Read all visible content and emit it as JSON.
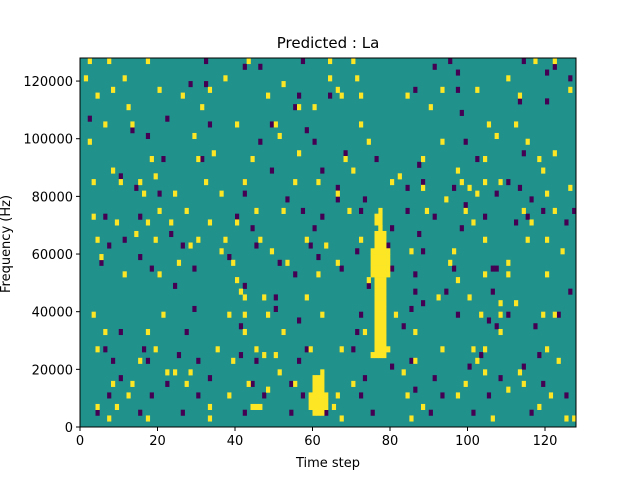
{
  "chart_data": {
    "type": "heatmap",
    "title": "Predicted : La",
    "xlabel": "Time step",
    "ylabel": "Frequency (Hz)",
    "xlim": [
      0,
      128
    ],
    "ylim": [
      0,
      128000
    ],
    "xticks": [
      0,
      20,
      40,
      60,
      80,
      100,
      120
    ],
    "yticks": [
      0,
      20000,
      40000,
      60000,
      80000,
      100000,
      120000
    ],
    "xtick_labels": [
      "0",
      "20",
      "40",
      "60",
      "80",
      "100",
      "120"
    ],
    "ytick_labels": [
      "0",
      "20000",
      "40000",
      "60000",
      "80000",
      "100000",
      "120000"
    ],
    "n_time": 128,
    "n_freq_bins": 64,
    "freq_bin_hz": 2000,
    "colormap": "viridis",
    "value_levels": [
      -1,
      0,
      1
    ],
    "colors": {
      "low": "#440154",
      "mid": "#21918c",
      "high": "#fde725"
    },
    "background_value": 0,
    "high_cells": [
      [
        2,
        63
      ],
      [
        7,
        63
      ],
      [
        17,
        63
      ],
      [
        43,
        63
      ],
      [
        64,
        63
      ],
      [
        70,
        63
      ],
      [
        122,
        63
      ],
      [
        117,
        63
      ],
      [
        1,
        60
      ],
      [
        11,
        60
      ],
      [
        37,
        60
      ],
      [
        64,
        60
      ],
      [
        71,
        60
      ],
      [
        110,
        60
      ],
      [
        4,
        57
      ],
      [
        26,
        57
      ],
      [
        48,
        57
      ],
      [
        67,
        57
      ],
      [
        72,
        57
      ],
      [
        84,
        57
      ],
      [
        113,
        57
      ],
      [
        12,
        55
      ],
      [
        31,
        55
      ],
      [
        56,
        55
      ],
      [
        60,
        55
      ],
      [
        90,
        55
      ],
      [
        6,
        52
      ],
      [
        13,
        52
      ],
      [
        40,
        52
      ],
      [
        50,
        52
      ],
      [
        72,
        52
      ],
      [
        105,
        52
      ],
      [
        112,
        52
      ],
      [
        34,
        47
      ],
      [
        122,
        47
      ],
      [
        8,
        44
      ],
      [
        10,
        42
      ],
      [
        19,
        43
      ],
      [
        70,
        44
      ],
      [
        82,
        43
      ],
      [
        97,
        44
      ],
      [
        119,
        44
      ],
      [
        3,
        42
      ],
      [
        15,
        42
      ],
      [
        32,
        42
      ],
      [
        42,
        42
      ],
      [
        55,
        42
      ],
      [
        61,
        42
      ],
      [
        80,
        42
      ],
      [
        88,
        41
      ],
      [
        98,
        42
      ],
      [
        100,
        41
      ],
      [
        104,
        42
      ],
      [
        108,
        42
      ],
      [
        126,
        41
      ],
      [
        16,
        40
      ],
      [
        24,
        40
      ],
      [
        36,
        40
      ],
      [
        66,
        40
      ],
      [
        94,
        39
      ],
      [
        102,
        40
      ],
      [
        120,
        40
      ],
      [
        20,
        37
      ],
      [
        27,
        37
      ],
      [
        45,
        37
      ],
      [
        52,
        37
      ],
      [
        69,
        37
      ],
      [
        76,
        36
      ],
      [
        89,
        37
      ],
      [
        99,
        37
      ],
      [
        114,
        37
      ],
      [
        122,
        37
      ],
      [
        9,
        35
      ],
      [
        17,
        35
      ],
      [
        23,
        35
      ],
      [
        33,
        35
      ],
      [
        40,
        35
      ],
      [
        76,
        35
      ],
      [
        77,
        34
      ],
      [
        101,
        35
      ],
      [
        116,
        35
      ],
      [
        4,
        32
      ],
      [
        19,
        32
      ],
      [
        30,
        32
      ],
      [
        37,
        32
      ],
      [
        46,
        32
      ],
      [
        58,
        32
      ],
      [
        72,
        32
      ],
      [
        104,
        32
      ],
      [
        115,
        32
      ],
      [
        120,
        32
      ],
      [
        5,
        29
      ],
      [
        25,
        28
      ],
      [
        39,
        28
      ],
      [
        53,
        28
      ],
      [
        66,
        28
      ],
      [
        95,
        28
      ],
      [
        110,
        28
      ],
      [
        11,
        26
      ],
      [
        20,
        26
      ],
      [
        40,
        25
      ],
      [
        61,
        26
      ],
      [
        74,
        25
      ],
      [
        97,
        25
      ],
      [
        104,
        26
      ],
      [
        110,
        26
      ],
      [
        120,
        26
      ],
      [
        41,
        23
      ],
      [
        42,
        22
      ],
      [
        47,
        22
      ],
      [
        58,
        22
      ],
      [
        92,
        22
      ],
      [
        100,
        22
      ],
      [
        108,
        21
      ],
      [
        112,
        21
      ],
      [
        3,
        19
      ],
      [
        21,
        19
      ],
      [
        38,
        19
      ],
      [
        42,
        19
      ],
      [
        48,
        19
      ],
      [
        62,
        19
      ],
      [
        81,
        19
      ],
      [
        103,
        19
      ],
      [
        108,
        19
      ],
      [
        119,
        19
      ],
      [
        122,
        19
      ],
      [
        6,
        16
      ],
      [
        17,
        16
      ],
      [
        42,
        16
      ],
      [
        52,
        16
      ],
      [
        73,
        16
      ],
      [
        86,
        16
      ],
      [
        108,
        16
      ],
      [
        4,
        13
      ],
      [
        19,
        13
      ],
      [
        35,
        13
      ],
      [
        45,
        13
      ],
      [
        59,
        13
      ],
      [
        79,
        13
      ],
      [
        93,
        13
      ],
      [
        101,
        13
      ],
      [
        104,
        13
      ],
      [
        120,
        13
      ],
      [
        22,
        9
      ],
      [
        24,
        9
      ],
      [
        28,
        9
      ],
      [
        51,
        9
      ],
      [
        62,
        9
      ],
      [
        83,
        9
      ],
      [
        104,
        9
      ],
      [
        113,
        9
      ],
      [
        8,
        7
      ],
      [
        13,
        7
      ],
      [
        27,
        7
      ],
      [
        43,
        7
      ],
      [
        55,
        7
      ],
      [
        70,
        7
      ],
      [
        99,
        7
      ],
      [
        114,
        7
      ],
      [
        38,
        5
      ],
      [
        48,
        6
      ],
      [
        66,
        5
      ],
      [
        84,
        5
      ],
      [
        97,
        5
      ],
      [
        121,
        5
      ],
      [
        110,
        6
      ],
      [
        4,
        3
      ],
      [
        9,
        3
      ],
      [
        33,
        3
      ],
      [
        46,
        3
      ],
      [
        65,
        3
      ],
      [
        88,
        3
      ],
      [
        118,
        3
      ],
      [
        7,
        1
      ],
      [
        17,
        1
      ],
      [
        33,
        1
      ],
      [
        67,
        1
      ],
      [
        85,
        1
      ],
      [
        106,
        1
      ],
      [
        125,
        1
      ],
      [
        127,
        1
      ],
      [
        12,
        5
      ],
      [
        15,
        11
      ],
      [
        39,
        11
      ],
      [
        47,
        12
      ],
      [
        50,
        12
      ],
      [
        67,
        13
      ],
      [
        75,
        12
      ],
      [
        86,
        11
      ],
      [
        102,
        11
      ],
      [
        123,
        11
      ],
      [
        3,
        36
      ],
      [
        14,
        33
      ],
      [
        28,
        31
      ],
      [
        36,
        30
      ],
      [
        49,
        30
      ],
      [
        63,
        31
      ],
      [
        85,
        30
      ],
      [
        96,
        30
      ],
      [
        124,
        30
      ],
      [
        18,
        46
      ],
      [
        30,
        46
      ],
      [
        44,
        46
      ],
      [
        56,
        47
      ],
      [
        68,
        46
      ],
      [
        88,
        46
      ],
      [
        104,
        46
      ],
      [
        118,
        46
      ],
      [
        2,
        49
      ],
      [
        29,
        50
      ],
      [
        51,
        50
      ],
      [
        74,
        49
      ],
      [
        93,
        49
      ],
      [
        107,
        50
      ],
      [
        115,
        49
      ],
      [
        8,
        58
      ],
      [
        20,
        58
      ],
      [
        33,
        58
      ],
      [
        52,
        59
      ],
      [
        66,
        58
      ],
      [
        93,
        58
      ],
      [
        102,
        58
      ],
      [
        126,
        58
      ]
    ],
    "low_cells": [
      [
        32,
        63
      ],
      [
        57,
        63
      ],
      [
        95,
        63
      ],
      [
        114,
        63
      ],
      [
        122,
        62
      ],
      [
        42,
        62
      ],
      [
        46,
        62
      ],
      [
        91,
        62
      ],
      [
        97,
        61
      ],
      [
        120,
        61
      ],
      [
        126,
        60
      ],
      [
        28,
        59
      ],
      [
        32,
        59
      ],
      [
        56,
        57
      ],
      [
        64,
        57
      ],
      [
        86,
        58
      ],
      [
        97,
        58
      ],
      [
        55,
        55
      ],
      [
        120,
        56
      ],
      [
        98,
        54
      ],
      [
        113,
        56
      ],
      [
        2,
        53
      ],
      [
        13,
        51
      ],
      [
        22,
        53
      ],
      [
        33,
        52
      ],
      [
        49,
        52
      ],
      [
        58,
        51
      ],
      [
        17,
        50
      ],
      [
        46,
        49
      ],
      [
        60,
        49
      ],
      [
        68,
        47
      ],
      [
        99,
        49
      ],
      [
        114,
        47
      ],
      [
        21,
        46
      ],
      [
        31,
        46
      ],
      [
        49,
        44
      ],
      [
        62,
        44
      ],
      [
        76,
        46
      ],
      [
        87,
        45
      ],
      [
        102,
        46
      ],
      [
        10,
        43
      ],
      [
        14,
        41
      ],
      [
        42,
        42
      ],
      [
        66,
        41
      ],
      [
        84,
        41
      ],
      [
        88,
        42
      ],
      [
        96,
        41
      ],
      [
        110,
        42
      ],
      [
        113,
        41
      ],
      [
        20,
        40
      ],
      [
        42,
        40
      ],
      [
        53,
        39
      ],
      [
        66,
        39
      ],
      [
        73,
        39
      ],
      [
        107,
        40
      ],
      [
        116,
        39
      ],
      [
        6,
        36
      ],
      [
        15,
        36
      ],
      [
        40,
        36
      ],
      [
        57,
        37
      ],
      [
        62,
        36
      ],
      [
        72,
        37
      ],
      [
        84,
        37
      ],
      [
        91,
        36
      ],
      [
        99,
        38
      ],
      [
        104,
        36
      ],
      [
        115,
        36
      ],
      [
        119,
        37
      ],
      [
        127,
        37
      ],
      [
        11,
        32
      ],
      [
        23,
        33
      ],
      [
        44,
        34
      ],
      [
        60,
        34
      ],
      [
        80,
        34
      ],
      [
        87,
        33
      ],
      [
        98,
        34
      ],
      [
        112,
        35
      ],
      [
        125,
        35
      ],
      [
        7,
        31
      ],
      [
        26,
        31
      ],
      [
        45,
        31
      ],
      [
        59,
        31
      ],
      [
        71,
        30
      ],
      [
        79,
        31
      ],
      [
        88,
        30
      ],
      [
        5,
        28
      ],
      [
        15,
        29
      ],
      [
        29,
        27
      ],
      [
        38,
        29
      ],
      [
        51,
        28
      ],
      [
        61,
        29
      ],
      [
        80,
        27
      ],
      [
        106,
        27
      ],
      [
        18,
        27
      ],
      [
        55,
        26
      ],
      [
        67,
        27
      ],
      [
        86,
        26
      ],
      [
        96,
        27
      ],
      [
        107,
        27
      ],
      [
        24,
        24
      ],
      [
        42,
        24
      ],
      [
        50,
        22
      ],
      [
        74,
        24
      ],
      [
        86,
        23
      ],
      [
        94,
        23
      ],
      [
        106,
        23
      ],
      [
        126,
        23
      ],
      [
        29,
        20
      ],
      [
        50,
        20
      ],
      [
        56,
        18
      ],
      [
        72,
        19
      ],
      [
        85,
        20
      ],
      [
        88,
        21
      ],
      [
        97,
        19
      ],
      [
        105,
        18
      ],
      [
        110,
        19
      ],
      [
        123,
        19
      ],
      [
        10,
        16
      ],
      [
        27,
        16
      ],
      [
        41,
        17
      ],
      [
        52,
        16
      ],
      [
        71,
        16
      ],
      [
        83,
        17
      ],
      [
        107,
        17
      ],
      [
        117,
        17
      ],
      [
        6,
        13
      ],
      [
        16,
        13
      ],
      [
        25,
        12
      ],
      [
        41,
        12
      ],
      [
        58,
        13
      ],
      [
        70,
        13
      ],
      [
        85,
        11
      ],
      [
        103,
        12
      ],
      [
        118,
        12
      ],
      [
        8,
        11
      ],
      [
        17,
        11
      ],
      [
        30,
        11
      ],
      [
        45,
        11
      ],
      [
        56,
        11
      ],
      [
        80,
        10
      ],
      [
        100,
        10
      ],
      [
        114,
        10
      ],
      [
        10,
        8
      ],
      [
        22,
        7
      ],
      [
        33,
        8
      ],
      [
        44,
        7
      ],
      [
        54,
        7
      ],
      [
        73,
        8
      ],
      [
        91,
        8
      ],
      [
        108,
        8
      ],
      [
        119,
        7
      ],
      [
        7,
        5
      ],
      [
        18,
        5
      ],
      [
        30,
        5
      ],
      [
        47,
        5
      ],
      [
        57,
        5
      ],
      [
        72,
        5
      ],
      [
        86,
        6
      ],
      [
        93,
        5
      ],
      [
        105,
        5
      ],
      [
        125,
        5
      ],
      [
        4,
        2
      ],
      [
        15,
        2
      ],
      [
        26,
        2
      ],
      [
        42,
        2
      ],
      [
        54,
        2
      ],
      [
        63,
        2
      ],
      [
        75,
        2
      ],
      [
        90,
        2
      ],
      [
        101,
        2
      ],
      [
        116,
        2
      ]
    ]
  }
}
